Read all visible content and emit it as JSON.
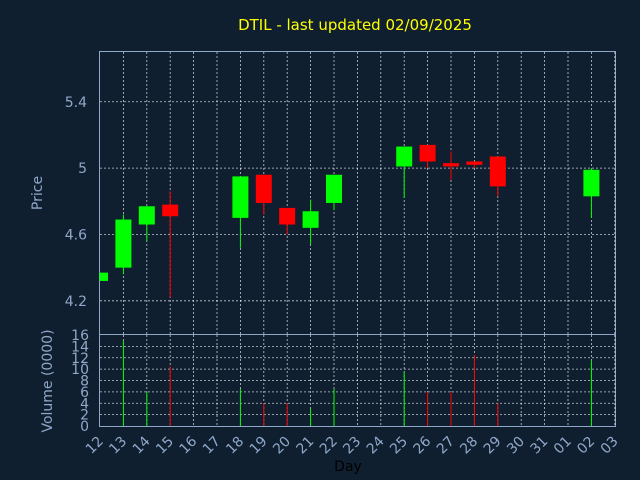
{
  "chart_data": {
    "type": "candlestick",
    "title": "DTIL - last updated 02/09/2025",
    "xlabel": "Day",
    "colors": {
      "up": "#00ff00",
      "down": "#ff0000",
      "background": "#0f1f30",
      "text": "#8fa8c8",
      "title": "#ffff00"
    },
    "x_ticks": [
      "12",
      "13",
      "14",
      "15",
      "16",
      "17",
      "18",
      "19",
      "20",
      "21",
      "22",
      "23",
      "24",
      "25",
      "26",
      "27",
      "28",
      "29",
      "30",
      "31",
      "01",
      "02",
      "03"
    ],
    "price_panel": {
      "ylabel": "Price",
      "ylim": [
        4.0,
        5.7
      ],
      "y_ticks": [
        {
          "value": 4.2,
          "label": "4.2"
        },
        {
          "value": 4.6,
          "label": "4.6"
        },
        {
          "value": 5.0,
          "label": "5"
        },
        {
          "value": 5.4,
          "label": "5.4"
        }
      ]
    },
    "volume_panel": {
      "ylabel": "Volume (0000)",
      "ylim": [
        0,
        16
      ],
      "y_ticks": [
        {
          "value": 0,
          "label": "0"
        },
        {
          "value": 2,
          "label": "2"
        },
        {
          "value": 4,
          "label": "4"
        },
        {
          "value": 6,
          "label": "6"
        },
        {
          "value": 8,
          "label": "8"
        },
        {
          "value": 10,
          "label": "10"
        },
        {
          "value": 12,
          "label": "12"
        },
        {
          "value": 14,
          "label": "14"
        },
        {
          "value": 16,
          "label": "16"
        }
      ]
    },
    "candles": [
      {
        "day": 12,
        "open": 4.32,
        "high": 4.37,
        "low": 4.32,
        "close": 4.37,
        "volume": 0
      },
      {
        "day": 13,
        "open": 4.4,
        "high": 4.72,
        "low": 4.36,
        "close": 4.69,
        "volume": 15
      },
      {
        "day": 14,
        "open": 4.66,
        "high": 4.77,
        "low": 4.56,
        "close": 4.77,
        "volume": 6
      },
      {
        "day": 15,
        "open": 4.78,
        "high": 4.86,
        "low": 4.22,
        "close": 4.71,
        "volume": 10.5
      },
      {
        "day": 18,
        "open": 4.7,
        "high": 4.95,
        "low": 4.52,
        "close": 4.95,
        "volume": 6.5
      },
      {
        "day": 19,
        "open": 4.96,
        "high": 4.96,
        "low": 4.72,
        "close": 4.79,
        "volume": 4
      },
      {
        "day": 20,
        "open": 4.76,
        "high": 4.76,
        "low": 4.6,
        "close": 4.66,
        "volume": 4
      },
      {
        "day": 21,
        "open": 4.64,
        "high": 4.81,
        "low": 4.54,
        "close": 4.74,
        "volume": 3
      },
      {
        "day": 22,
        "open": 4.79,
        "high": 4.96,
        "low": 4.75,
        "close": 4.96,
        "volume": 6.5
      },
      {
        "day": 25,
        "open": 5.01,
        "high": 5.13,
        "low": 4.82,
        "close": 5.13,
        "volume": 9.5
      },
      {
        "day": 26,
        "open": 5.14,
        "high": 5.14,
        "low": 5.0,
        "close": 5.04,
        "volume": 6
      },
      {
        "day": 27,
        "open": 5.03,
        "high": 5.1,
        "low": 4.93,
        "close": 5.01,
        "volume": 6
      },
      {
        "day": 28,
        "open": 5.04,
        "high": 5.04,
        "low": 5.0,
        "close": 5.02,
        "volume": 12.5
      },
      {
        "day": 29,
        "open": 5.07,
        "high": 5.07,
        "low": 4.83,
        "close": 4.89,
        "volume": 4
      },
      {
        "day": 2,
        "open": 4.83,
        "high": 5.0,
        "low": 4.7,
        "close": 4.99,
        "volume": 11.5
      }
    ]
  }
}
